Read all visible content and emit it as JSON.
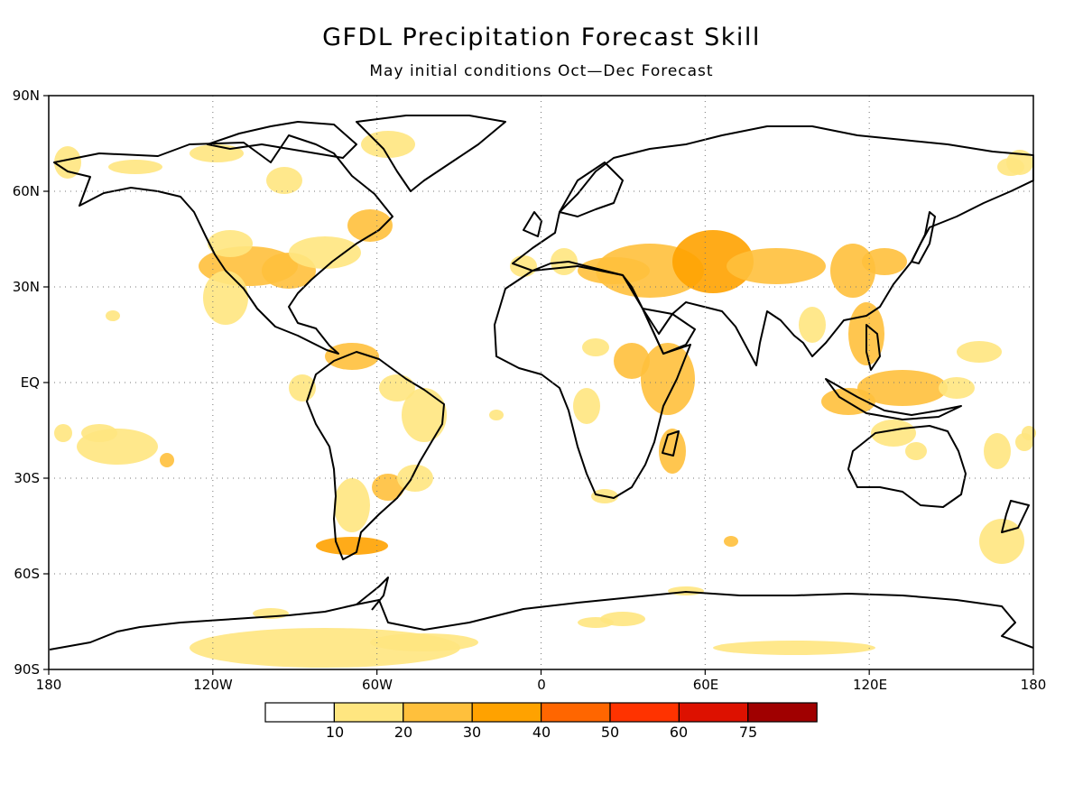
{
  "title": "GFDL Precipitation Forecast Skill",
  "subtitle": "May initial conditions   Oct—Dec Forecast",
  "map": {
    "projection": "equirectangular",
    "lon_range": [
      -180,
      180
    ],
    "lat_range": [
      -90,
      90
    ],
    "grid": "dotted",
    "lat_labels": [
      "90N",
      "60N",
      "30N",
      "EQ",
      "30S",
      "60S",
      "90S"
    ],
    "lon_labels": [
      "180",
      "120W",
      "60W",
      "0",
      "60E",
      "120E",
      "180"
    ]
  },
  "colorbar": {
    "levels": [
      "10",
      "20",
      "30",
      "40",
      "50",
      "60",
      "75"
    ],
    "colors": [
      "#ffffff",
      "#ffe680",
      "#ffc03c",
      "#ffa200",
      "#ff6600",
      "#ff3300",
      "#dd1100",
      "#a00000"
    ]
  }
}
